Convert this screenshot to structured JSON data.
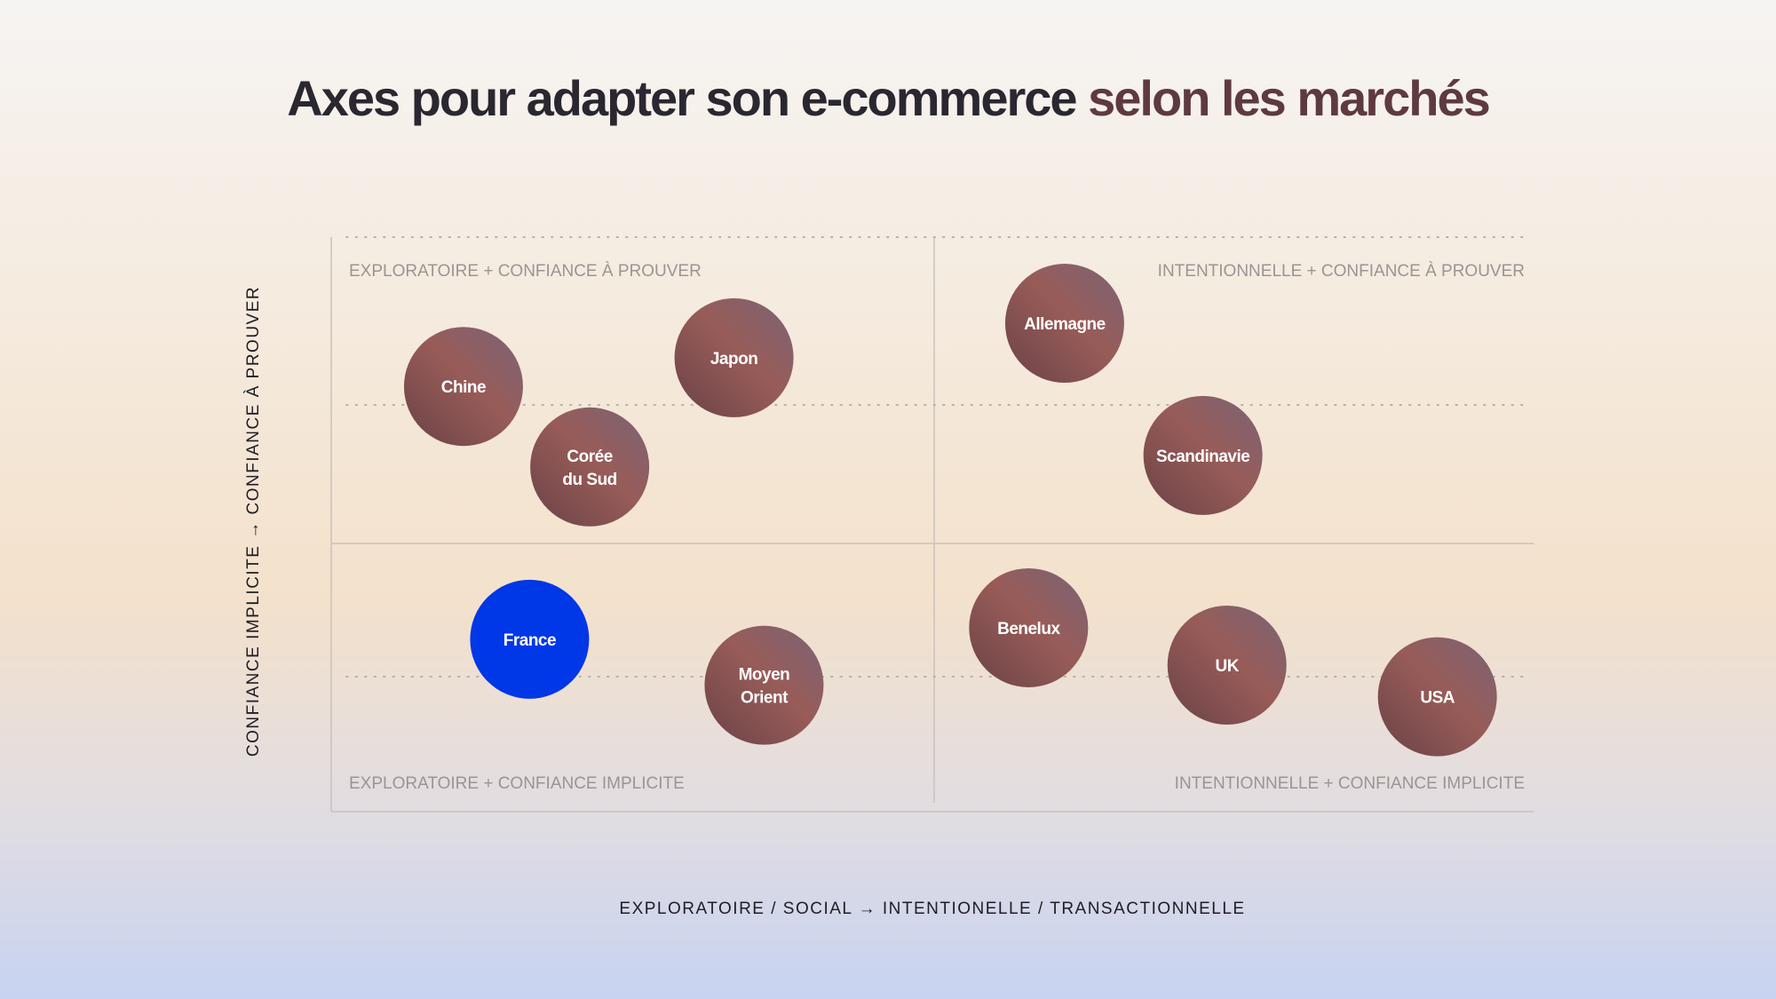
{
  "title": {
    "main": "Axes pour adapter son e-commerce ",
    "accent": "selon les marchés"
  },
  "colors": {
    "bubble_start": "#6a4247",
    "bubble_mid": "#985c58",
    "bubble_end": "#7b6476",
    "highlight": "#0037e6",
    "grid": "#c9c2bc"
  },
  "chart_data": {
    "type": "scatter",
    "xlabel": "EXPLORATOIRE / SOCIAL → INTENTIONELLE / TRANSACTIONNELLE",
    "ylabel": "CONFIANCE IMPLICITE → CONFIANCE À PROUVER",
    "xlim": [
      0,
      100
    ],
    "ylim": [
      0,
      100
    ],
    "quadrants": {
      "top_left": "EXPLORATOIRE + CONFIANCE À PROUVER",
      "top_right": "INTENTIONNELLE + CONFIANCE À PROUVER",
      "bottom_left": "EXPLORATOIRE + CONFIANCE IMPLICITE",
      "bottom_right": "INTENTIONNELLE + CONFIANCE IMPLICITE"
    },
    "points": [
      {
        "label": [
          "Chine"
        ],
        "x": 11,
        "y": 74,
        "highlight": false
      },
      {
        "label": [
          "Japon"
        ],
        "x": 33.5,
        "y": 79,
        "highlight": false
      },
      {
        "label": [
          "Corée",
          "du Sud"
        ],
        "x": 21.5,
        "y": 60,
        "highlight": false
      },
      {
        "label": [
          "Allemagne"
        ],
        "x": 61,
        "y": 85,
        "highlight": false
      },
      {
        "label": [
          "Scandinavie"
        ],
        "x": 72.5,
        "y": 62,
        "highlight": false
      },
      {
        "label": [
          "France"
        ],
        "x": 16.5,
        "y": 30,
        "highlight": true
      },
      {
        "label": [
          "Moyen",
          "Orient"
        ],
        "x": 36,
        "y": 22,
        "highlight": false
      },
      {
        "label": [
          "Benelux"
        ],
        "x": 58,
        "y": 32,
        "highlight": false
      },
      {
        "label": [
          "UK"
        ],
        "x": 74.5,
        "y": 25.5,
        "highlight": false
      },
      {
        "label": [
          "USA"
        ],
        "x": 92,
        "y": 20,
        "highlight": false
      }
    ]
  }
}
